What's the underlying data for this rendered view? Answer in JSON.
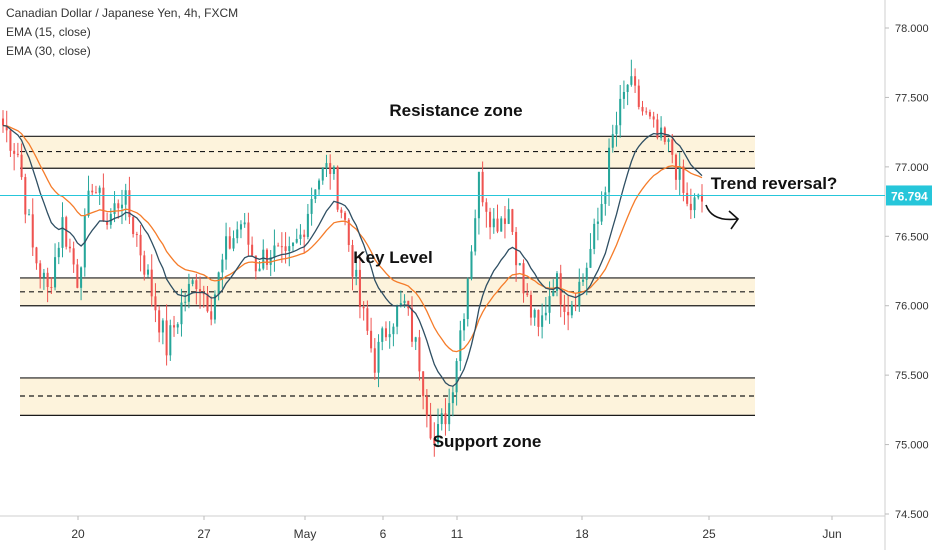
{
  "legend": {
    "symbol": "Canadian Dollar / Japanese Yen, 4h, FXCM",
    "ema15": "EMA (15, close)",
    "ema30": "EMA (30, close)"
  },
  "colors": {
    "up": "#26a69a",
    "down": "#ef5350",
    "ema15": "#2f4f63",
    "ema30": "#f57c2a",
    "zone_fill": "#fdf3dc",
    "price_line": "#26c6da",
    "price_tag": "#26c6da"
  },
  "chart_data": {
    "type": "candlestick",
    "title": "Canadian Dollar / Japanese Yen, 4h, FXCM",
    "ylim": [
      74.5,
      78.15
    ],
    "y_ticks": [
      "78.000",
      "77.500",
      "77.000",
      "76.500",
      "76.000",
      "75.500",
      "75.000",
      "74.500"
    ],
    "x_ticks": [
      "20",
      "27",
      "May",
      "6",
      "11",
      "18",
      "25",
      "Jun"
    ],
    "last_price": "76.794",
    "zones": [
      {
        "name": "Resistance zone",
        "top": 77.22,
        "mid": 77.11,
        "bottom": 76.99
      },
      {
        "name": "Key Level",
        "top": 76.2,
        "mid": 76.1,
        "bottom": 76.0
      },
      {
        "name": "Support zone",
        "top": 75.48,
        "mid": 75.35,
        "bottom": 75.21
      }
    ],
    "annotations": [
      "Resistance zone",
      "Key Level",
      "Support zone",
      "Trend reversal?"
    ],
    "close_path": [
      77.3,
      77.1,
      76.4,
      76.1,
      76.6,
      76.2,
      76.9,
      76.6,
      76.8,
      76.5,
      76.1,
      75.7,
      76.0,
      76.2,
      76.0,
      76.4,
      76.6,
      76.3,
      76.4,
      76.3,
      76.5,
      76.9,
      77.0,
      76.6,
      76.0,
      75.6,
      75.9,
      76.0,
      75.6,
      75.0,
      75.3,
      76.0,
      76.9,
      76.6,
      76.7,
      76.1,
      75.8,
      76.2,
      76.0,
      76.2,
      76.6,
      77.2,
      77.6,
      77.4,
      77.2,
      77.1,
      76.7,
      76.75
    ],
    "series": [
      {
        "name": "EMA (15, close)"
      },
      {
        "name": "EMA (30, close)"
      }
    ]
  }
}
